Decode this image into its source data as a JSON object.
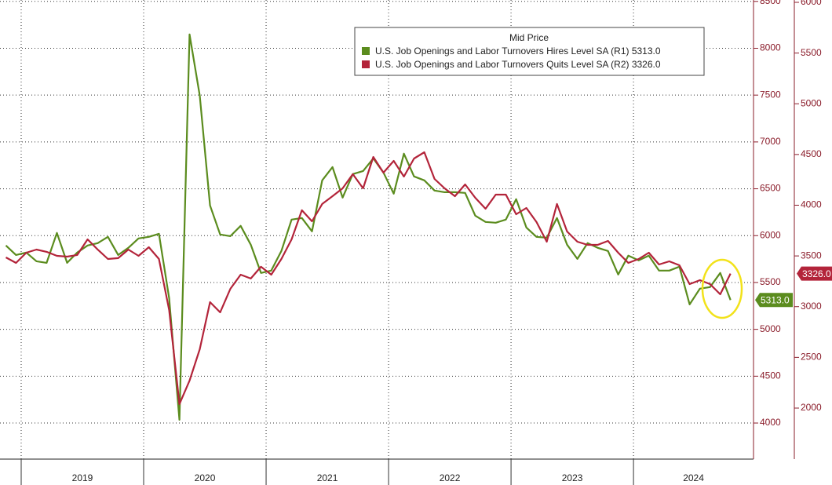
{
  "chart_data": {
    "type": "line",
    "legend_title": "Mid Price",
    "x": [
      2018.875,
      2018.958,
      2019.042,
      2019.125,
      2019.208,
      2019.292,
      2019.375,
      2019.458,
      2019.542,
      2019.625,
      2019.708,
      2019.792,
      2019.875,
      2019.958,
      2020.042,
      2020.125,
      2020.208,
      2020.292,
      2020.375,
      2020.458,
      2020.542,
      2020.625,
      2020.708,
      2020.792,
      2020.875,
      2020.958,
      2021.042,
      2021.125,
      2021.208,
      2021.292,
      2021.375,
      2021.458,
      2021.542,
      2021.625,
      2021.708,
      2021.792,
      2021.875,
      2021.958,
      2022.042,
      2022.125,
      2022.208,
      2022.292,
      2022.375,
      2022.458,
      2022.542,
      2022.625,
      2022.708,
      2022.792,
      2022.875,
      2022.958,
      2023.042,
      2023.125,
      2023.208,
      2023.292,
      2023.375,
      2023.458,
      2023.542,
      2023.625,
      2023.708,
      2023.792,
      2023.875,
      2023.958,
      2024.042,
      2024.125,
      2024.208,
      2024.292,
      2024.375,
      2024.458,
      2024.542,
      2024.625,
      2024.708,
      2024.792
    ],
    "series": [
      {
        "name": "U.S. Job Openings and Labor Turnovers Hires Level SA  (R1) 5313.0",
        "color": "#5b8c1e",
        "axis": "y",
        "last_label": "5313.0",
        "values": [
          5895,
          5794,
          5820,
          5727,
          5710,
          6029,
          5710,
          5820,
          5895,
          5920,
          5987,
          5794,
          5870,
          5970,
          5987,
          6020,
          5333,
          4035,
          8148,
          7495,
          6322,
          6012,
          5995,
          6104,
          5903,
          5602,
          5627,
          5836,
          6171,
          6188,
          6046,
          6590,
          6732,
          6406,
          6657,
          6690,
          6825,
          6674,
          6448,
          6875,
          6632,
          6590,
          6481,
          6464,
          6464,
          6456,
          6213,
          6146,
          6138,
          6171,
          6389,
          6087,
          5987,
          5978,
          6188,
          5903,
          5752,
          5920,
          5870,
          5836,
          5585,
          5786,
          5736,
          5786,
          5627,
          5627,
          5669,
          5266,
          5434,
          5451,
          5602,
          5313
        ]
      },
      {
        "name": "U.S. Job Openings and Labor Turnovers Quits Level SA  (R2) 3326.0",
        "color": "#b3243a",
        "axis": "y2",
        "last_label": "3326.0",
        "values": [
          3485,
          3431,
          3532,
          3563,
          3540,
          3501,
          3493,
          3509,
          3663,
          3563,
          3470,
          3478,
          3563,
          3501,
          3586,
          3470,
          2967,
          2039,
          2271,
          2580,
          3044,
          2944,
          3176,
          3315,
          3277,
          3393,
          3315,
          3470,
          3663,
          3950,
          3841,
          4012,
          4089,
          4166,
          4306,
          4166,
          4476,
          4321,
          4437,
          4282,
          4460,
          4522,
          4259,
          4166,
          4089,
          4205,
          4073,
          3965,
          4104,
          4104,
          3911,
          3973,
          3834,
          3640,
          4012,
          3741,
          3640,
          3609,
          3609,
          3648,
          3532,
          3431,
          3470,
          3532,
          3416,
          3447,
          3408,
          3222,
          3261,
          3222,
          3122,
          3326
        ]
      }
    ],
    "xlim": [
      2018.827,
      2024.98
    ],
    "xticks": [
      {
        "value": 2019,
        "label": "2019"
      },
      {
        "value": 2020,
        "label": "2020"
      },
      {
        "value": 2021,
        "label": "2021"
      },
      {
        "value": 2022,
        "label": "2022"
      },
      {
        "value": 2023,
        "label": "2023"
      },
      {
        "value": 2024,
        "label": "2024"
      }
    ],
    "ylim": [
      3615,
      8515
    ],
    "yticks": [
      4000,
      4500,
      5000,
      5500,
      6000,
      6500,
      7000,
      7500,
      8000,
      8500
    ],
    "y2lim": [
      1497,
      6023
    ],
    "y2ticks": [
      2000,
      2500,
      3000,
      3500,
      4000,
      4500,
      5000,
      5500,
      6000
    ],
    "grid": true
  }
}
